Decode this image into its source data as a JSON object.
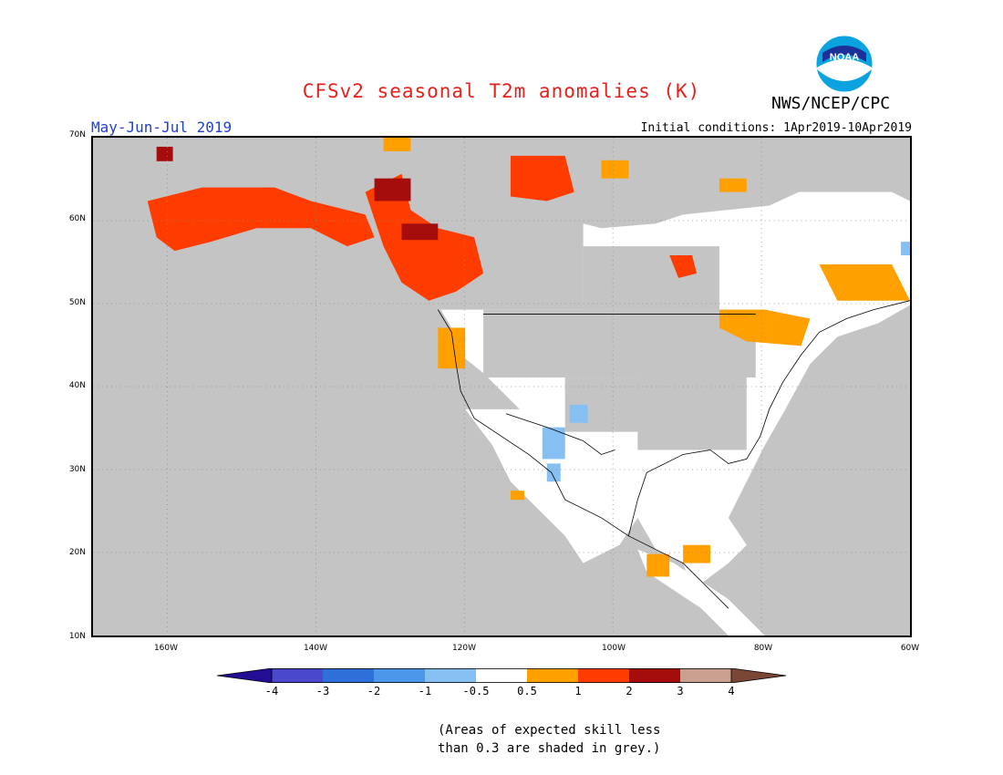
{
  "header": {
    "title": "CFSv2 seasonal T2m anomalies (K)",
    "season": "May-Jun-Jul 2019",
    "agency": "NWS/NCEP/CPC",
    "initial_conditions": "Initial conditions: 1Apr2019-10Apr2019",
    "logo_text": "NOAA"
  },
  "colors": {
    "title": "#e8201c",
    "season": "#1f3fd8",
    "ocean_grey": "#c4c4c4",
    "land_neutral": "#ffffff"
  },
  "map": {
    "lat_labels": [
      "70N",
      "60N",
      "50N",
      "40N",
      "30N",
      "20N",
      "10N"
    ],
    "lon_labels": [
      "160W",
      "140W",
      "120W",
      "100W",
      "80W",
      "60W"
    ],
    "extent": {
      "lon": [
        -170,
        -60
      ],
      "lat": [
        10,
        70
      ]
    },
    "skill_mask_color": "grey"
  },
  "legend": {
    "labels": [
      "-4",
      "-3",
      "-2",
      "-1",
      "-0.5",
      "0.5",
      "1",
      "2",
      "3",
      "4"
    ],
    "bins": [
      {
        "color": "#3a23b4"
      },
      {
        "color": "#4a48cc"
      },
      {
        "color": "#2f6fd9"
      },
      {
        "color": "#4d97ea"
      },
      {
        "color": "#86bff2"
      },
      {
        "color": "#ffffff"
      },
      {
        "color": "#ffa000"
      },
      {
        "color": "#ff3c00"
      },
      {
        "color": "#a50d0d"
      },
      {
        "color": "#c9a08f"
      }
    ],
    "low_cap_color": "#230d94",
    "high_cap_color": "#7a4635"
  },
  "note": {
    "line1": "(Areas of expected skill less",
    "line2": "than 0.3 are shaded in grey.)"
  }
}
